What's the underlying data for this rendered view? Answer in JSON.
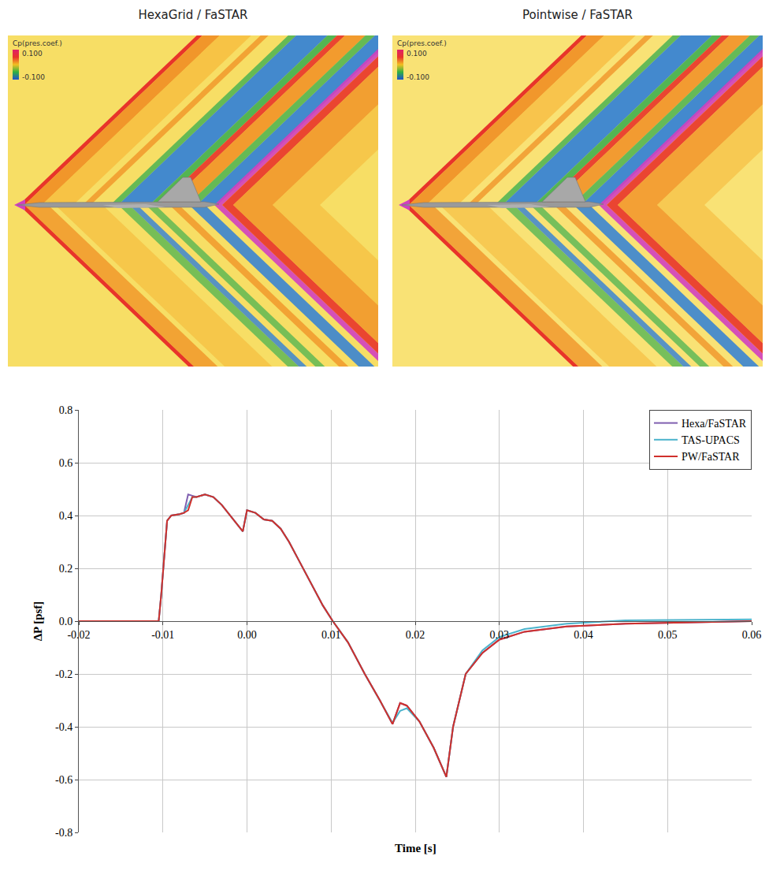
{
  "panels": [
    {
      "title": "HexaGrid / FaSTAR",
      "colorbar_label": "Cp(pres.coef.)",
      "colorbar_ticks": [
        {
          "value": 0.1,
          "label": "0.100"
        },
        {
          "value": -0.1,
          "label": "-0.100"
        }
      ]
    },
    {
      "title": "Pointwise / FaSTAR",
      "colorbar_label": "Cp(pres.coef.)",
      "colorbar_ticks": [
        {
          "value": 0.1,
          "label": "0.100"
        },
        {
          "value": -0.1,
          "label": "-0.100"
        }
      ]
    }
  ],
  "chart_data": {
    "type": "line",
    "x_label": "Time [s]",
    "y_label": "ΔP [psf]",
    "x": [
      -0.02,
      -0.0105,
      -0.0102,
      -0.0095,
      -0.009,
      -0.008,
      -0.0075,
      -0.007,
      -0.0065,
      -0.006,
      -0.005,
      -0.004,
      -0.003,
      -0.002,
      -0.001,
      -0.0005,
      0,
      0.001,
      0.002,
      0.003,
      0.004,
      0.005,
      0.006,
      0.007,
      0.008,
      0.009,
      0.0102,
      0.012,
      0.014,
      0.0158,
      0.0173,
      0.0182,
      0.019,
      0.0205,
      0.0222,
      0.0237,
      0.0245,
      0.026,
      0.028,
      0.03,
      0.033,
      0.038,
      0.045,
      0.06
    ],
    "series": [
      {
        "name": "Hexa/FaSTAR",
        "color": "#7f5fb0",
        "values": [
          0,
          0,
          0.1,
          0.38,
          0.4,
          0.405,
          0.41,
          0.48,
          0.475,
          0.47,
          0.48,
          0.47,
          0.44,
          0.4,
          0.36,
          0.34,
          0.42,
          0.41,
          0.385,
          0.38,
          0.35,
          0.3,
          0.24,
          0.18,
          0.12,
          0.06,
          0,
          -0.08,
          -0.2,
          -0.3,
          -0.39,
          -0.31,
          -0.32,
          -0.38,
          -0.48,
          -0.59,
          -0.4,
          -0.2,
          -0.12,
          -0.07,
          -0.04,
          -0.02,
          -0.01,
          0
        ]
      },
      {
        "name": "TAS-UPACS",
        "color": "#4bb3cc",
        "values": [
          0,
          0,
          0.1,
          0.38,
          0.4,
          0.405,
          0.41,
          0.44,
          0.47,
          0.47,
          0.48,
          0.47,
          0.44,
          0.4,
          0.36,
          0.34,
          0.42,
          0.41,
          0.385,
          0.38,
          0.35,
          0.3,
          0.24,
          0.18,
          0.12,
          0.06,
          0,
          -0.08,
          -0.2,
          -0.3,
          -0.385,
          -0.34,
          -0.33,
          -0.38,
          -0.48,
          -0.59,
          -0.4,
          -0.2,
          -0.11,
          -0.06,
          -0.03,
          -0.01,
          0.003,
          0.007
        ]
      },
      {
        "name": "PW/FaSTAR",
        "color": "#d0302c",
        "values": [
          0,
          0,
          0.1,
          0.38,
          0.4,
          0.405,
          0.41,
          0.42,
          0.47,
          0.47,
          0.48,
          0.47,
          0.44,
          0.4,
          0.36,
          0.34,
          0.42,
          0.41,
          0.385,
          0.38,
          0.35,
          0.3,
          0.24,
          0.18,
          0.12,
          0.06,
          0,
          -0.08,
          -0.2,
          -0.3,
          -0.39,
          -0.31,
          -0.32,
          -0.38,
          -0.48,
          -0.59,
          -0.4,
          -0.2,
          -0.12,
          -0.07,
          -0.04,
          -0.02,
          -0.01,
          0
        ]
      }
    ],
    "xlim": [
      -0.02,
      0.06
    ],
    "xticks": [
      -0.02,
      -0.01,
      {
        "value": 0,
        "label": "0.00"
      },
      0.01,
      0.02,
      0.03,
      0.04,
      0.05,
      0.06
    ],
    "ylim": [
      -0.8,
      0.8
    ],
    "yticks": [
      -0.8,
      -0.6,
      -0.4,
      -0.2,
      {
        "value": 0,
        "label": "0.0"
      },
      0.2,
      0.4,
      0.6,
      0.8
    ],
    "grid": true,
    "legend": "top-right"
  }
}
